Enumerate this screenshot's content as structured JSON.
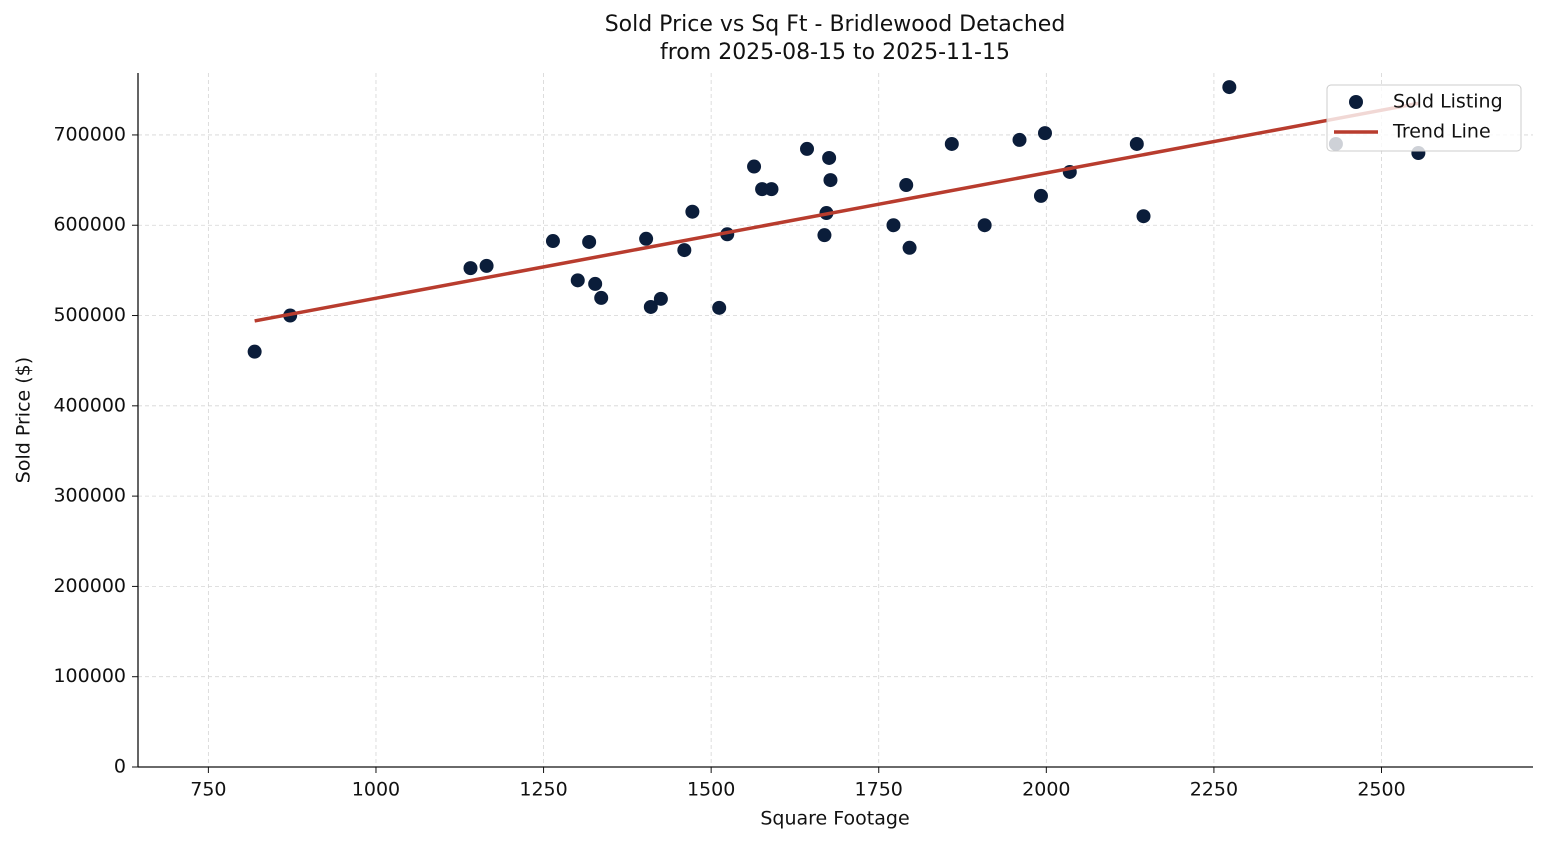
{
  "chart_data": {
    "type": "scatter",
    "title": "Sold Price vs Sq Ft - Bridlewood Detached",
    "subtitle": "from 2025-08-15 to 2025-11-15",
    "x_label": "Square Footage",
    "y_label": "Sold Price ($)",
    "xlim": [
      645,
      2726
    ],
    "ylim": [
      0,
      768600
    ],
    "xticks": [
      750,
      1000,
      1250,
      1500,
      1750,
      2000,
      2250,
      2500
    ],
    "yticks": [
      0,
      100000,
      200000,
      300000,
      400000,
      500000,
      600000,
      700000
    ],
    "grid": true,
    "legend": "upper right",
    "series": [
      {
        "name": "Sold Listing",
        "type": "scatter",
        "color": "#0b1d3a",
        "x": [
          819,
          872,
          1141,
          1165,
          1264,
          1301,
          1318,
          1327,
          1336,
          1403,
          1410,
          1425,
          1460,
          1472,
          1512,
          1524,
          1564,
          1576,
          1590,
          1643,
          1669,
          1672,
          1676,
          1678,
          1772,
          1791,
          1796,
          1859,
          1908,
          1960,
          1992,
          1998,
          2035,
          2135,
          2145,
          2273,
          2432,
          2555
        ],
        "values": [
          460000,
          500000,
          552500,
          555000,
          582500,
          539000,
          581500,
          535000,
          519500,
          585000,
          509500,
          518500,
          572500,
          615000,
          508500,
          590000,
          665000,
          640000,
          640000,
          684500,
          589000,
          613500,
          674500,
          650000,
          600000,
          644500,
          575000,
          690000,
          600000,
          694500,
          632500,
          702000,
          659000,
          690000,
          610000,
          753000,
          690000,
          680000
        ]
      },
      {
        "name": "Trend Line",
        "type": "line",
        "color": "#b83c2e",
        "x": [
          819,
          2555
        ],
        "values": [
          494000,
          735000
        ]
      }
    ]
  }
}
